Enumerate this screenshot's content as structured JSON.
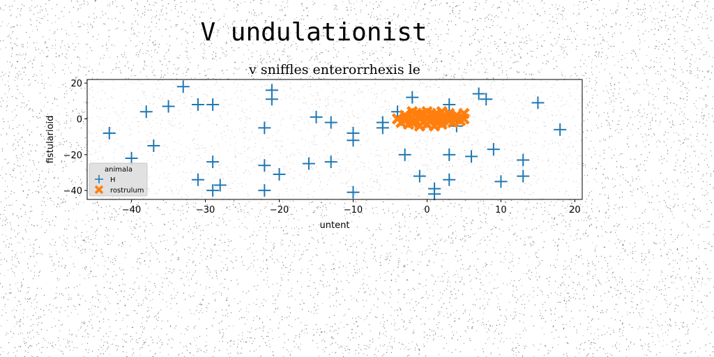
{
  "chart_data": {
    "type": "scatter",
    "suptitle": "V undulationist",
    "title": "v sniffles enterorrhexis le",
    "xlabel": "untent",
    "ylabel": "fistularioid",
    "xlim": [
      -46,
      21
    ],
    "ylim": [
      -45,
      22
    ],
    "xticks": [
      -40,
      -30,
      -20,
      -10,
      0,
      10,
      20
    ],
    "yticks": [
      -40,
      -20,
      0,
      20
    ],
    "grid": false,
    "legend": {
      "title": "animala",
      "placement": "lower-left"
    },
    "series": [
      {
        "name": "H",
        "marker": "plus",
        "color": "#1f77b4",
        "points": [
          [
            -33,
            18
          ],
          [
            -21,
            16
          ],
          [
            -21,
            11
          ],
          [
            -31,
            8
          ],
          [
            -29,
            8
          ],
          [
            -35,
            7
          ],
          [
            -38,
            4
          ],
          [
            -15,
            1
          ],
          [
            -43,
            -8
          ],
          [
            -37,
            -15
          ],
          [
            -22,
            -5
          ],
          [
            -13,
            -2
          ],
          [
            -10,
            -8
          ],
          [
            -10,
            -12
          ],
          [
            -6,
            -2
          ],
          [
            -6,
            -5
          ],
          [
            -4,
            4
          ],
          [
            -2,
            12
          ],
          [
            3,
            8
          ],
          [
            7,
            14
          ],
          [
            8,
            11
          ],
          [
            15,
            9
          ],
          [
            18,
            -6
          ],
          [
            4,
            -4
          ],
          [
            -40,
            -22
          ],
          [
            -29,
            -24
          ],
          [
            -22,
            -26
          ],
          [
            -16,
            -25
          ],
          [
            -13,
            -24
          ],
          [
            -3,
            -20
          ],
          [
            3,
            -20
          ],
          [
            6,
            -21
          ],
          [
            9,
            -17
          ],
          [
            13,
            -23
          ],
          [
            -31,
            -34
          ],
          [
            -28,
            -37
          ],
          [
            -29,
            -40
          ],
          [
            -22,
            -40
          ],
          [
            -20,
            -31
          ],
          [
            -10,
            -41
          ],
          [
            -1,
            -32
          ],
          [
            1,
            -39
          ],
          [
            1,
            -42
          ],
          [
            3,
            -34
          ],
          [
            10,
            -35
          ],
          [
            13,
            -32
          ]
        ]
      },
      {
        "name": "rostrulum",
        "marker": "x-filled",
        "color": "#ff7f0e",
        "points": [
          [
            -4,
            0
          ],
          [
            -3.5,
            -2
          ],
          [
            -3,
            2
          ],
          [
            -2.5,
            -3
          ],
          [
            -2,
            1
          ],
          [
            -2,
            4
          ],
          [
            -1.5,
            -1
          ],
          [
            -1.5,
            3
          ],
          [
            -1,
            -4
          ],
          [
            -1,
            0
          ],
          [
            -0.5,
            2
          ],
          [
            -0.5,
            -2
          ],
          [
            0,
            1
          ],
          [
            0,
            -3
          ],
          [
            0,
            4
          ],
          [
            0.5,
            -1
          ],
          [
            0.5,
            3
          ],
          [
            1,
            0
          ],
          [
            1,
            -4
          ],
          [
            1.5,
            2
          ],
          [
            1.5,
            -2
          ],
          [
            2,
            0
          ],
          [
            2,
            4
          ],
          [
            2,
            -3
          ],
          [
            2.5,
            1
          ],
          [
            3,
            -1
          ],
          [
            3,
            3
          ],
          [
            3.5,
            -2
          ],
          [
            4,
            0
          ],
          [
            4,
            2
          ],
          [
            4.5,
            -1
          ],
          [
            5,
            3
          ],
          [
            5,
            0
          ],
          [
            -3,
            -1
          ],
          [
            -2,
            -2
          ],
          [
            -1,
            2
          ],
          [
            0,
            0
          ],
          [
            1,
            2
          ],
          [
            2,
            -1
          ],
          [
            3,
            1
          ],
          [
            -0.5,
            3
          ],
          [
            1.5,
            0
          ]
        ]
      }
    ]
  }
}
